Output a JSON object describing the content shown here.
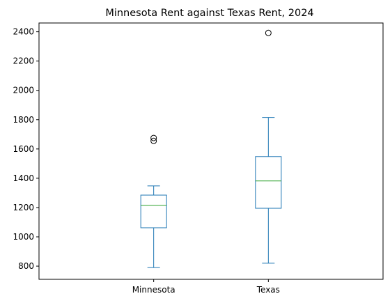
{
  "chart_data": {
    "type": "box",
    "title": "Minnesota Rent against Texas Rent, 2024",
    "xlabel": "",
    "ylabel": "",
    "categories": [
      "Minnesota",
      "Texas"
    ],
    "ylim": [
      710,
      2460
    ],
    "yticks": [
      800,
      1000,
      1200,
      1400,
      1600,
      1800,
      2000,
      2200,
      2400
    ],
    "grid": false,
    "boxes": [
      {
        "name": "Minnesota",
        "whisker_low": 790,
        "q1": 1062,
        "median": 1215,
        "q3": 1285,
        "whisker_high": 1348,
        "outliers": [
          1675,
          1655
        ]
      },
      {
        "name": "Texas",
        "whisker_low": 820,
        "q1": 1195,
        "median": 1382,
        "q3": 1548,
        "whisker_high": 1815,
        "outliers": [
          2392
        ]
      }
    ],
    "colors": {
      "box": "#1f77b4",
      "median": "#2ca02c",
      "outlier": "#000000",
      "axes": "#000000"
    }
  }
}
